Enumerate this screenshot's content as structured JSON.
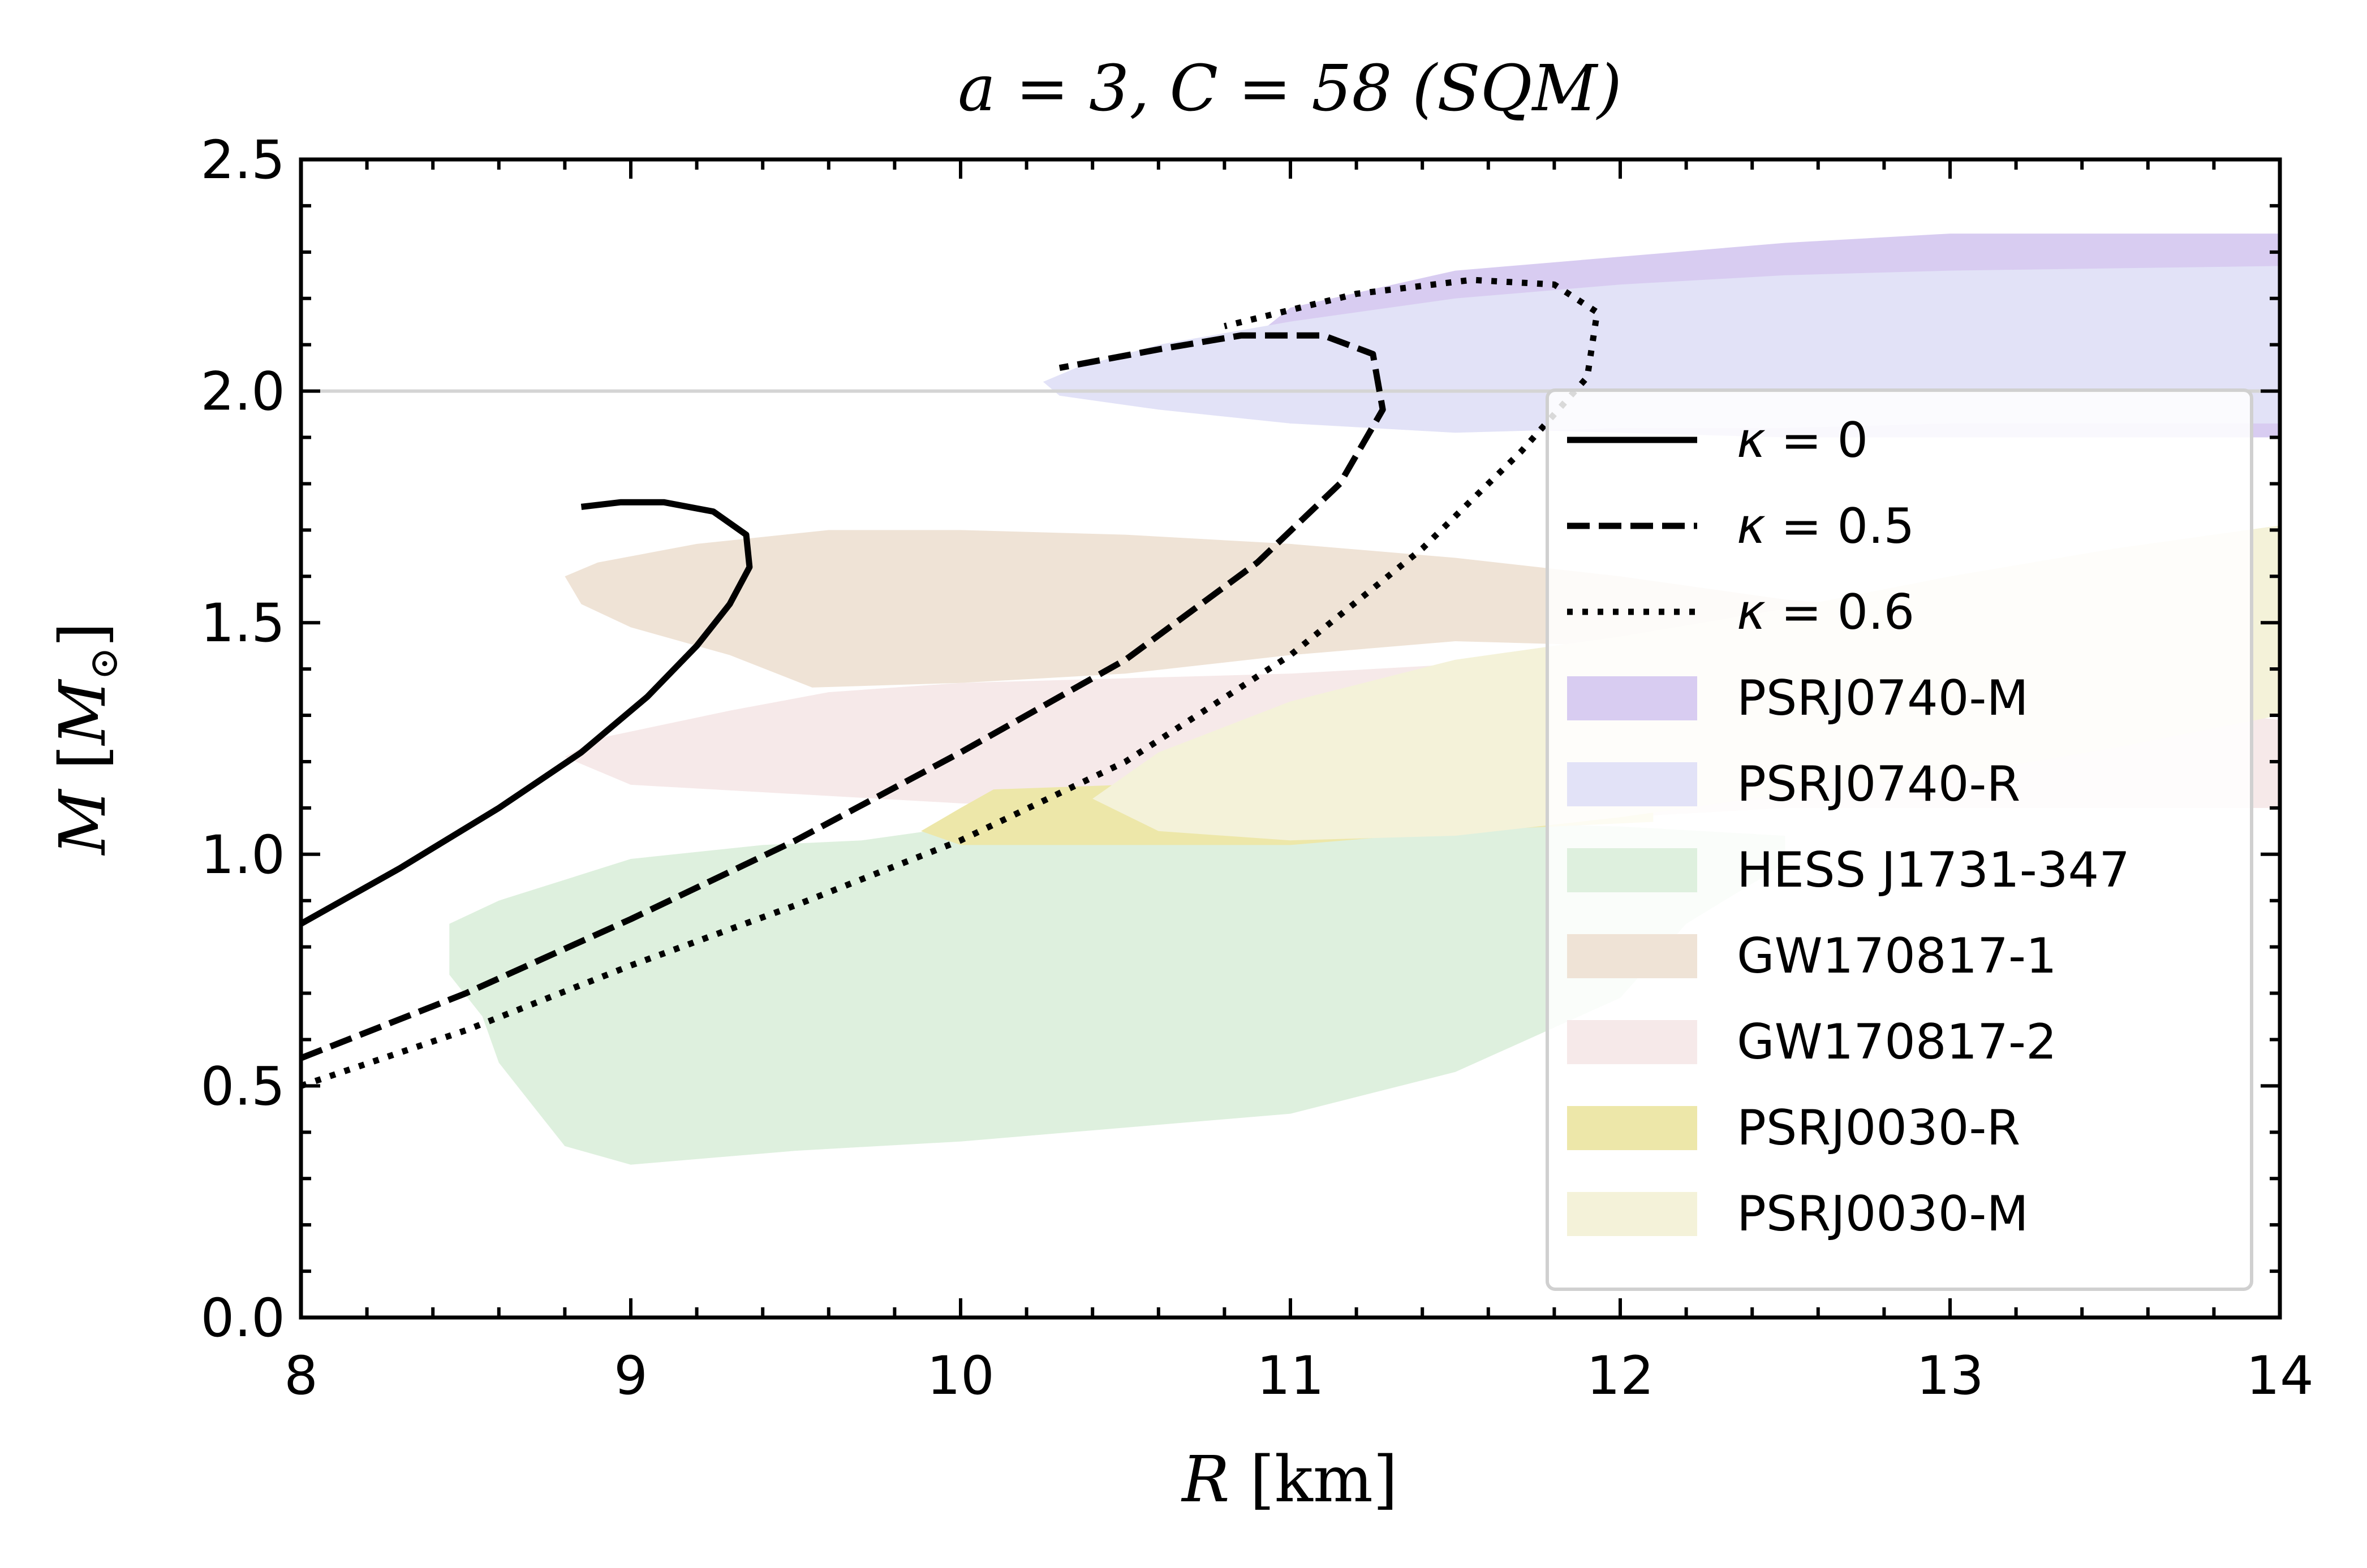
{
  "chart_data": {
    "type": "line",
    "title": "a = 3, C = 58 (SQM)",
    "xlabel_var": "R",
    "xlabel_unit": " [km]",
    "ylabel_var": "M",
    "ylabel_unit_open": " [",
    "ylabel_unit_var": "M",
    "ylabel_unit_sub": "⊙",
    "ylabel_unit_close": "]",
    "xlim": [
      8,
      14
    ],
    "ylim": [
      0,
      2.5
    ],
    "xticks": [
      "8",
      "9",
      "10",
      "11",
      "12",
      "13",
      "14"
    ],
    "yticks": [
      "0.0",
      "0.5",
      "1.0",
      "1.5",
      "2.0",
      "2.5"
    ],
    "reference_line_y": 2.0,
    "series": [
      {
        "name": "κ = 0",
        "style": "solid",
        "color": "#000000",
        "points": [
          [
            8.0,
            0.85
          ],
          [
            8.3,
            0.97
          ],
          [
            8.6,
            1.1
          ],
          [
            8.85,
            1.22
          ],
          [
            9.05,
            1.34
          ],
          [
            9.2,
            1.45
          ],
          [
            9.3,
            1.54
          ],
          [
            9.36,
            1.62
          ],
          [
            9.35,
            1.69
          ],
          [
            9.25,
            1.74
          ],
          [
            9.1,
            1.76
          ],
          [
            8.97,
            1.76
          ],
          [
            8.85,
            1.75
          ]
        ]
      },
      {
        "name": "κ = 0.5",
        "style": "dashed",
        "color": "#000000",
        "points": [
          [
            8.0,
            0.56
          ],
          [
            8.5,
            0.7
          ],
          [
            9.0,
            0.86
          ],
          [
            9.5,
            1.03
          ],
          [
            10.0,
            1.22
          ],
          [
            10.5,
            1.42
          ],
          [
            10.9,
            1.63
          ],
          [
            11.15,
            1.8
          ],
          [
            11.28,
            1.96
          ],
          [
            11.25,
            2.08
          ],
          [
            11.1,
            2.12
          ],
          [
            10.85,
            2.12
          ],
          [
            10.6,
            2.09
          ],
          [
            10.3,
            2.05
          ]
        ]
      },
      {
        "name": "κ = 0.6",
        "style": "dotted",
        "color": "#000000",
        "points": [
          [
            8.0,
            0.5
          ],
          [
            8.5,
            0.62
          ],
          [
            9.0,
            0.76
          ],
          [
            9.5,
            0.89
          ],
          [
            10.0,
            1.03
          ],
          [
            10.5,
            1.2
          ],
          [
            11.0,
            1.43
          ],
          [
            11.4,
            1.66
          ],
          [
            11.7,
            1.87
          ],
          [
            11.9,
            2.03
          ],
          [
            11.93,
            2.17
          ],
          [
            11.8,
            2.23
          ],
          [
            11.55,
            2.24
          ],
          [
            11.2,
            2.21
          ],
          [
            10.8,
            2.14
          ]
        ]
      }
    ],
    "regions": [
      {
        "name": "PSRJ0740-M",
        "color": "#d8ccf1",
        "polygon": [
          [
            10.65,
            1.98
          ],
          [
            11.0,
            2.18
          ],
          [
            11.5,
            2.26
          ],
          [
            12.0,
            2.29
          ],
          [
            12.5,
            2.32
          ],
          [
            13.0,
            2.34
          ],
          [
            14.0,
            2.34
          ],
          [
            14.0,
            1.9
          ],
          [
            13.0,
            1.9
          ],
          [
            12.5,
            1.9
          ],
          [
            12.0,
            1.91
          ],
          [
            11.5,
            1.92
          ],
          [
            11.0,
            1.93
          ],
          [
            10.65,
            1.98
          ]
        ]
      },
      {
        "name": "PSRJ0740-R",
        "color": "#e2e2f7",
        "polygon": [
          [
            10.25,
            2.02
          ],
          [
            10.35,
            2.05
          ],
          [
            10.6,
            2.1
          ],
          [
            11.0,
            2.15
          ],
          [
            11.5,
            2.2
          ],
          [
            12.0,
            2.23
          ],
          [
            12.5,
            2.25
          ],
          [
            13.0,
            2.26
          ],
          [
            14.0,
            2.27
          ],
          [
            14.0,
            1.93
          ],
          [
            13.0,
            1.93
          ],
          [
            12.5,
            1.92
          ],
          [
            12.0,
            1.92
          ],
          [
            11.5,
            1.91
          ],
          [
            11.0,
            1.93
          ],
          [
            10.6,
            1.96
          ],
          [
            10.3,
            1.99
          ],
          [
            10.25,
            2.02
          ]
        ]
      },
      {
        "name": "HESS J1731-347",
        "color": "#def0de",
        "polygon": [
          [
            8.45,
            0.85
          ],
          [
            8.6,
            0.9
          ],
          [
            9.0,
            0.99
          ],
          [
            9.4,
            1.02
          ],
          [
            9.7,
            1.03
          ],
          [
            10.0,
            1.06
          ],
          [
            10.5,
            1.05
          ],
          [
            11.0,
            1.06
          ],
          [
            11.5,
            1.07
          ],
          [
            12.0,
            1.06
          ],
          [
            12.5,
            1.04
          ],
          [
            12.5,
            0.98
          ],
          [
            12.2,
            0.85
          ],
          [
            12.0,
            0.69
          ],
          [
            11.5,
            0.53
          ],
          [
            11.0,
            0.44
          ],
          [
            10.5,
            0.41
          ],
          [
            10.0,
            0.38
          ],
          [
            9.5,
            0.36
          ],
          [
            9.0,
            0.33
          ],
          [
            8.8,
            0.37
          ],
          [
            8.7,
            0.46
          ],
          [
            8.6,
            0.55
          ],
          [
            8.55,
            0.65
          ],
          [
            8.45,
            0.74
          ],
          [
            8.45,
            0.85
          ]
        ]
      },
      {
        "name": "GW170817-1",
        "color": "#efe3d6",
        "polygon": [
          [
            8.8,
            1.6
          ],
          [
            8.9,
            1.63
          ],
          [
            9.2,
            1.67
          ],
          [
            9.6,
            1.7
          ],
          [
            10.0,
            1.7
          ],
          [
            10.5,
            1.69
          ],
          [
            11.0,
            1.67
          ],
          [
            11.5,
            1.64
          ],
          [
            12.0,
            1.6
          ],
          [
            12.5,
            1.55
          ],
          [
            13.0,
            1.52
          ],
          [
            13.5,
            1.51
          ],
          [
            14.0,
            1.5
          ],
          [
            14.0,
            1.34
          ],
          [
            13.5,
            1.36
          ],
          [
            13.0,
            1.39
          ],
          [
            12.5,
            1.42
          ],
          [
            12.0,
            1.45
          ],
          [
            11.5,
            1.46
          ],
          [
            11.0,
            1.43
          ],
          [
            10.5,
            1.39
          ],
          [
            10.0,
            1.37
          ],
          [
            9.55,
            1.36
          ],
          [
            9.3,
            1.43
          ],
          [
            9.0,
            1.49
          ],
          [
            8.85,
            1.54
          ],
          [
            8.8,
            1.6
          ]
        ]
      },
      {
        "name": "GW170817-2",
        "color": "#f6e9e9",
        "polygon": [
          [
            8.8,
            1.21
          ],
          [
            8.9,
            1.25
          ],
          [
            9.3,
            1.31
          ],
          [
            9.6,
            1.35
          ],
          [
            10.0,
            1.37
          ],
          [
            10.5,
            1.38
          ],
          [
            11.0,
            1.39
          ],
          [
            11.5,
            1.41
          ],
          [
            12.0,
            1.43
          ],
          [
            12.5,
            1.4
          ],
          [
            13.0,
            1.37
          ],
          [
            13.5,
            1.33
          ],
          [
            14.0,
            1.29
          ],
          [
            14.0,
            1.1
          ],
          [
            13.5,
            1.1
          ],
          [
            13.0,
            1.1
          ],
          [
            12.5,
            1.1
          ],
          [
            12.0,
            1.08
          ],
          [
            11.5,
            1.08
          ],
          [
            11.0,
            1.09
          ],
          [
            10.5,
            1.1
          ],
          [
            10.0,
            1.11
          ],
          [
            9.5,
            1.13
          ],
          [
            9.0,
            1.15
          ],
          [
            8.8,
            1.21
          ]
        ]
      },
      {
        "name": "PSRJ0030-R",
        "color": "#ede7a9",
        "polygon": [
          [
            9.88,
            1.05
          ],
          [
            10.0,
            1.1
          ],
          [
            10.1,
            1.14
          ],
          [
            10.5,
            1.15
          ],
          [
            11.0,
            1.15
          ],
          [
            11.5,
            1.15
          ],
          [
            12.0,
            1.16
          ],
          [
            12.1,
            1.15
          ],
          [
            12.1,
            1.07
          ],
          [
            11.5,
            1.05
          ],
          [
            11.0,
            1.02
          ],
          [
            10.5,
            1.02
          ],
          [
            10.0,
            1.02
          ],
          [
            9.88,
            1.05
          ]
        ]
      },
      {
        "name": "PSRJ0030-M",
        "color": "#f4f2d9",
        "polygon": [
          [
            10.4,
            1.12
          ],
          [
            10.6,
            1.22
          ],
          [
            11.0,
            1.33
          ],
          [
            11.5,
            1.42
          ],
          [
            12.0,
            1.47
          ],
          [
            12.5,
            1.53
          ],
          [
            13.0,
            1.6
          ],
          [
            13.5,
            1.66
          ],
          [
            14.0,
            1.71
          ],
          [
            14.0,
            1.3
          ],
          [
            13.5,
            1.23
          ],
          [
            13.0,
            1.17
          ],
          [
            12.5,
            1.13
          ],
          [
            12.0,
            1.08
          ],
          [
            11.5,
            1.04
          ],
          [
            11.0,
            1.03
          ],
          [
            10.6,
            1.05
          ],
          [
            10.4,
            1.12
          ]
        ]
      }
    ],
    "legend": {
      "placement": "lower-right",
      "items": [
        {
          "kind": "line",
          "style": "solid",
          "label_var": "κ",
          "label_rest": " = 0"
        },
        {
          "kind": "line",
          "style": "dashed",
          "label_var": "κ",
          "label_rest": " = 0.5"
        },
        {
          "kind": "line",
          "style": "dotted",
          "label_var": "κ",
          "label_rest": " = 0.6"
        },
        {
          "kind": "patch",
          "color": "#d8ccf1",
          "label": "PSRJ0740-M"
        },
        {
          "kind": "patch",
          "color": "#e2e2f7",
          "label": "PSRJ0740-R"
        },
        {
          "kind": "patch",
          "color": "#def0de",
          "label": "HESS J1731-347"
        },
        {
          "kind": "patch",
          "color": "#efe3d6",
          "label": "GW170817-1"
        },
        {
          "kind": "patch",
          "color": "#f6e9e9",
          "label": "GW170817-2"
        },
        {
          "kind": "patch",
          "color": "#ede7a9",
          "label": "PSRJ0030-R"
        },
        {
          "kind": "patch",
          "color": "#f4f2d9",
          "label": "PSRJ0030-M"
        }
      ]
    }
  }
}
